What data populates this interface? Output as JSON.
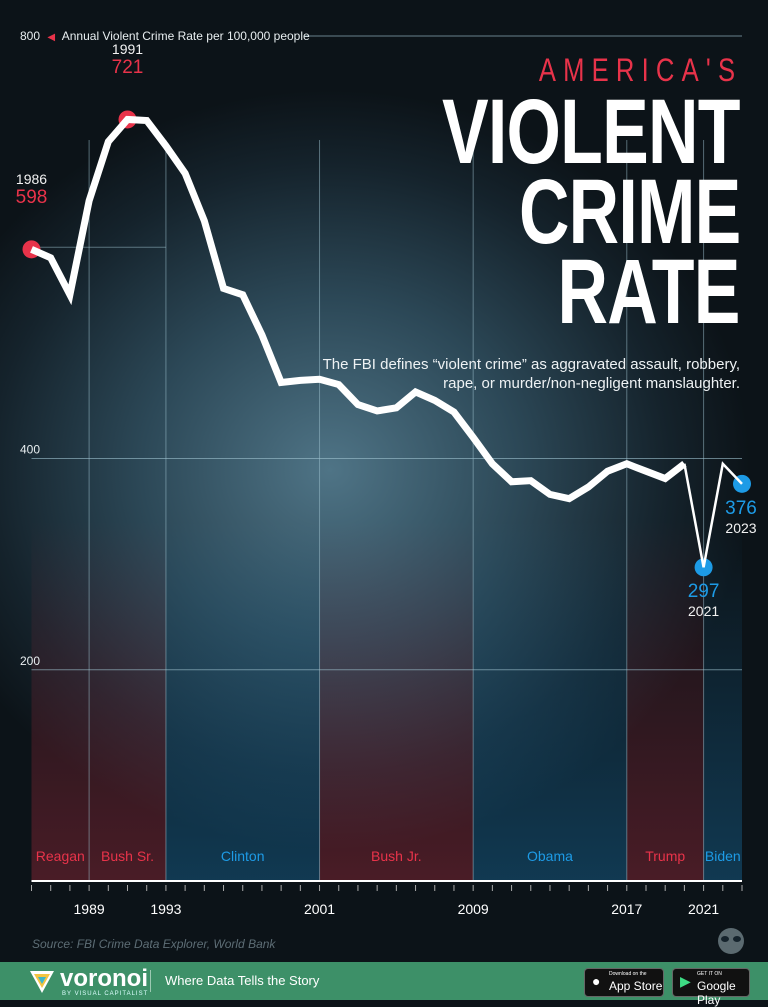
{
  "chart_data": {
    "type": "line",
    "title_prefix": "AMERICA'S",
    "title_lines": [
      "VIOLENT",
      "CRIME",
      "RATE"
    ],
    "ylabel": "Annual Violent Crime Rate per 100,000 people",
    "ylim": [
      0,
      800
    ],
    "yticks": [
      200,
      400,
      800
    ],
    "xlim": [
      1986,
      2023
    ],
    "xticks": [
      1989,
      1993,
      2001,
      2009,
      2017,
      2021
    ],
    "x": [
      1986,
      1987,
      1988,
      1989,
      1990,
      1991,
      1992,
      1993,
      1994,
      1995,
      1996,
      1997,
      1998,
      1999,
      2000,
      2001,
      2002,
      2003,
      2004,
      2005,
      2006,
      2007,
      2008,
      2009,
      2010,
      2011,
      2012,
      2013,
      2014,
      2015,
      2016,
      2017,
      2018,
      2019,
      2020,
      2021,
      2022,
      2023
    ],
    "values": [
      598,
      590,
      555,
      644,
      700,
      721,
      720,
      696,
      670,
      625,
      561,
      555,
      517,
      472,
      474,
      475,
      470,
      451,
      445,
      448,
      463,
      455,
      444,
      420,
      395,
      378,
      379,
      366,
      362,
      373,
      388,
      395,
      388,
      381,
      395,
      297,
      395,
      376
    ],
    "line_color": "#ffffff",
    "grid": true,
    "annotations": [
      {
        "year": "1986",
        "value": "598",
        "color": "#e8334a"
      },
      {
        "year": "1991",
        "value": "721",
        "color": "#e8334a"
      },
      {
        "year": "2021",
        "value": "297",
        "color": "#1d9be6"
      },
      {
        "year": "2023",
        "value": "376",
        "color": "#1d9be6"
      }
    ],
    "presidencies": [
      {
        "name": "Reagan",
        "start": 1986,
        "end": 1989,
        "party_color": "#e8334a"
      },
      {
        "name": "Bush Sr.",
        "start": 1989,
        "end": 1993,
        "party_color": "#e8334a"
      },
      {
        "name": "Clinton",
        "start": 1993,
        "end": 2001,
        "party_color": "#1d9be6"
      },
      {
        "name": "Bush Jr.",
        "start": 2001,
        "end": 2009,
        "party_color": "#e8334a"
      },
      {
        "name": "Obama",
        "start": 2009,
        "end": 2017,
        "party_color": "#1d9be6"
      },
      {
        "name": "Trump",
        "start": 2017,
        "end": 2021,
        "party_color": "#e8334a"
      },
      {
        "name": "Biden",
        "start": 2021,
        "end": 2023,
        "party_color": "#1d9be6"
      }
    ],
    "description": "The FBI defines “violent crime” as aggravated assault, robbery, rape, or murder/non-negligent manslaughter.",
    "source": "Source: FBI Crime Data Explorer, World Bank"
  },
  "footer": {
    "brand": "voronoi",
    "brand_sub": "BY VISUAL CAPITALIST",
    "tagline": "Where Data Tells the Story",
    "app_store_small": "Download on the",
    "app_store": "App Store",
    "google_play_small": "GET IT ON",
    "google_play": "Google Play"
  }
}
